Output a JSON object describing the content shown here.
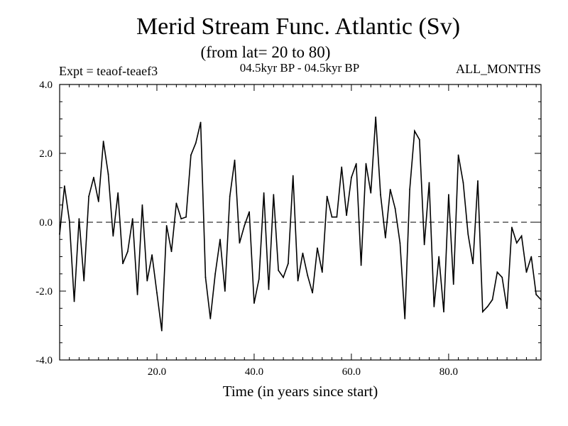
{
  "chart_data": {
    "type": "line",
    "title": "Merid Stream Func. Atlantic (Sv)",
    "subtitle": "(from lat= 20 to 80)",
    "experiment_label": "Expt = teaof-teaef3",
    "period_label": "04.5kyr BP - 04.5kyr BP",
    "months_label": "ALL_MONTHS",
    "xlabel": "Time (in years since start)",
    "ylabel": "",
    "xlim": [
      0,
      99
    ],
    "ylim": [
      -4,
      4
    ],
    "x_ticks": [
      20,
      40,
      60,
      80
    ],
    "x_tick_labels": [
      "20.0",
      "40.0",
      "60.0",
      "80.0"
    ],
    "y_ticks": [
      -4,
      -2,
      0,
      2,
      4
    ],
    "y_tick_labels": [
      "-4.0",
      "-2.0",
      "0.0",
      "2.0",
      "4.0"
    ],
    "reference_line": 0,
    "series": [
      {
        "name": "Merid Stream Func. Atlantic",
        "x": [
          0,
          1,
          2,
          3,
          4,
          5,
          6,
          7,
          8,
          9,
          10,
          11,
          12,
          13,
          14,
          15,
          16,
          17,
          18,
          19,
          20,
          21,
          22,
          23,
          24,
          25,
          26,
          27,
          28,
          29,
          30,
          31,
          32,
          33,
          34,
          35,
          36,
          37,
          38,
          39,
          40,
          41,
          42,
          43,
          44,
          45,
          46,
          47,
          48,
          49,
          50,
          51,
          52,
          53,
          54,
          55,
          56,
          57,
          58,
          59,
          60,
          61,
          62,
          63,
          64,
          65,
          66,
          67,
          68,
          69,
          70,
          71,
          72,
          73,
          74,
          75,
          76,
          77,
          78,
          79,
          80,
          81,
          82,
          83,
          84,
          85,
          86,
          87,
          88,
          89,
          90,
          91,
          92,
          93,
          94,
          95,
          96,
          97,
          98,
          99
        ],
        "values": [
          -0.35,
          1.05,
          0.05,
          -2.3,
          0.1,
          -1.7,
          0.75,
          1.3,
          0.6,
          2.35,
          1.4,
          -0.4,
          0.85,
          -1.2,
          -0.85,
          0.1,
          -2.1,
          0.5,
          -1.7,
          -0.95,
          -2.05,
          -3.15,
          -0.1,
          -0.85,
          0.55,
          0.1,
          0.15,
          1.95,
          2.3,
          2.9,
          -1.6,
          -2.8,
          -1.5,
          -0.5,
          -2.0,
          0.75,
          1.8,
          -0.6,
          -0.1,
          0.3,
          -2.35,
          -1.65,
          0.85,
          -1.95,
          0.8,
          -1.4,
          -1.6,
          -1.2,
          1.35,
          -1.7,
          -0.9,
          -1.55,
          -2.05,
          -0.75,
          -1.45,
          0.75,
          0.15,
          0.15,
          1.6,
          0.2,
          1.3,
          1.7,
          -1.25,
          1.7,
          0.85,
          3.05,
          0.8,
          -0.45,
          0.95,
          0.4,
          -0.6,
          -2.8,
          0.95,
          2.65,
          2.4,
          -0.65,
          1.15,
          -2.45,
          -1.0,
          -2.6,
          0.8,
          -1.8,
          1.95,
          1.15,
          -0.35,
          -1.2,
          1.2,
          -2.6,
          -2.45,
          -2.25,
          -1.45,
          -1.6,
          -2.5,
          -0.15,
          -0.6,
          -0.4,
          -1.45,
          -1.0,
          -2.1,
          -2.25
        ]
      }
    ]
  }
}
